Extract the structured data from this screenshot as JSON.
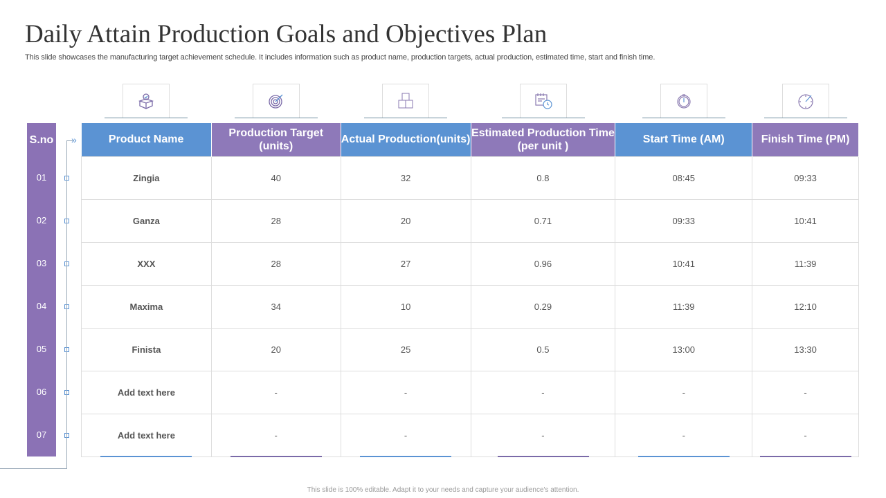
{
  "title": "Daily Attain Production Goals and Objectives Plan",
  "subtitle": "This slide showcases the manufacturing target achievement schedule. It includes information such as product name, production targets, actual production, estimated time, start and finish time.",
  "colors": {
    "blue": "#5b93d3",
    "purple": "#8e79b9"
  },
  "sno_header": "S.no",
  "sno": [
    "01",
    "02",
    "03",
    "04",
    "05",
    "06",
    "07"
  ],
  "headers": [
    "Product Name",
    "Production Target (units)",
    "Actual Production(units)",
    "Estimated Production Time (per unit )",
    "Start Time (AM)",
    "Finish Time (PM)"
  ],
  "icons": [
    "box-check-icon",
    "target-icon",
    "boxes-icon",
    "calendar-clock-icon",
    "stopwatch-icon",
    "clock-check-icon"
  ],
  "rows": [
    [
      "Zingia",
      "40",
      "32",
      "0.8",
      "08:45",
      "09:33"
    ],
    [
      "Ganza",
      "28",
      "20",
      "0.71",
      "09:33",
      "10:41"
    ],
    [
      "XXX",
      "28",
      "27",
      "0.96",
      "10:41",
      "11:39"
    ],
    [
      "Maxima",
      "34",
      "10",
      "0.29",
      "11:39",
      "12:10"
    ],
    [
      "Finista",
      "20",
      "25",
      "0.5",
      "13:00",
      "13:30"
    ],
    [
      "Add text here",
      "-",
      "-",
      "-",
      "-",
      "-"
    ],
    [
      "Add text here",
      "-",
      "-",
      "-",
      "-",
      "-"
    ]
  ],
  "footer": "This slide is 100% editable. Adapt it to your needs and capture your audience's attention."
}
